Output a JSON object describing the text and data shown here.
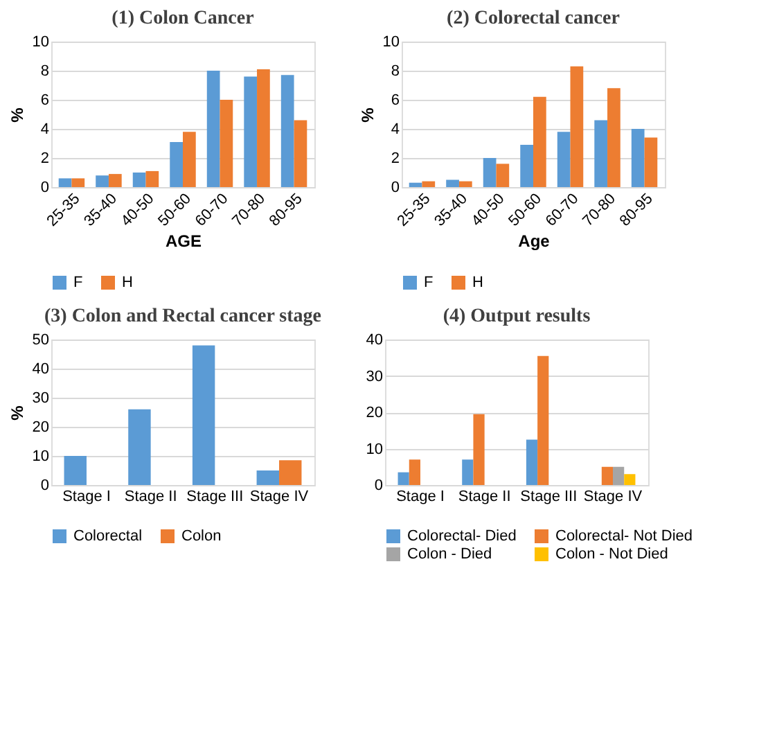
{
  "chart_data": [
    {
      "type": "bar",
      "title": "(1)  Colon Cancer",
      "xlabel": "AGE",
      "ylabel": "%",
      "categories": [
        "25-35",
        "35-40",
        "40-50",
        "50-60",
        "60-70",
        "70-80",
        "80-95"
      ],
      "ylim": [
        0,
        10
      ],
      "yticks": [
        0,
        2,
        4,
        6,
        8,
        10
      ],
      "grid": "y",
      "legend": "bottom",
      "series": [
        {
          "name": "F",
          "color": "#5b9bd5",
          "values": [
            0.6,
            0.8,
            1.0,
            3.1,
            8.0,
            7.6,
            7.7
          ]
        },
        {
          "name": "H",
          "color": "#ed7d31",
          "values": [
            0.6,
            0.9,
            1.1,
            3.8,
            6.0,
            8.1,
            4.6
          ]
        }
      ]
    },
    {
      "type": "bar",
      "title": "(2) Colorectal cancer",
      "xlabel": "Age",
      "ylabel": "%",
      "categories": [
        "25-35",
        "35-40",
        "40-50",
        "50-60",
        "60-70",
        "70-80",
        "80-95"
      ],
      "ylim": [
        0,
        10
      ],
      "yticks": [
        0,
        2,
        4,
        6,
        8,
        10
      ],
      "grid": "y",
      "legend": "bottom",
      "series": [
        {
          "name": "F",
          "color": "#5b9bd5",
          "values": [
            0.3,
            0.5,
            2.0,
            2.9,
            3.8,
            4.6,
            4.0
          ]
        },
        {
          "name": "H",
          "color": "#ed7d31",
          "values": [
            0.4,
            0.4,
            1.6,
            6.2,
            8.3,
            6.8,
            3.4
          ]
        }
      ]
    },
    {
      "type": "bar",
      "title": "(3) Colon and Rectal cancer stage",
      "ylabel": "%",
      "categories": [
        "Stage I",
        "Stage II",
        "Stage III",
        "Stage IV"
      ],
      "ylim": [
        0,
        50
      ],
      "yticks": [
        0,
        10,
        20,
        30,
        40,
        50
      ],
      "grid": "y",
      "legend": "bottom",
      "series": [
        {
          "name": "Colorectal",
          "color": "#5b9bd5",
          "values": [
            10,
            26,
            48,
            5
          ]
        },
        {
          "name": "Colon",
          "color": "#ed7d31",
          "values": [
            0,
            0,
            0,
            8.5
          ]
        }
      ]
    },
    {
      "type": "bar",
      "title": "(4) Output results",
      "categories": [
        "Stage I",
        "Stage II",
        "Stage III",
        "Stage IV"
      ],
      "ylim": [
        0,
        40
      ],
      "yticks": [
        0,
        10,
        20,
        30,
        40
      ],
      "grid": "y",
      "legend": "bottom",
      "series": [
        {
          "name": "Colorectal- Died",
          "color": "#5b9bd5",
          "values": [
            3.5,
            7,
            12.5,
            0
          ]
        },
        {
          "name": "Colorectal- Not Died",
          "color": "#ed7d31",
          "values": [
            7,
            19.5,
            35.5,
            5
          ]
        },
        {
          "name": "Colon - Died",
          "color": "#a5a5a5",
          "values": [
            0,
            0,
            0,
            5
          ]
        },
        {
          "name": "Colon - Not Died",
          "color": "#ffc000",
          "values": [
            0,
            0,
            0,
            3
          ]
        }
      ]
    }
  ]
}
